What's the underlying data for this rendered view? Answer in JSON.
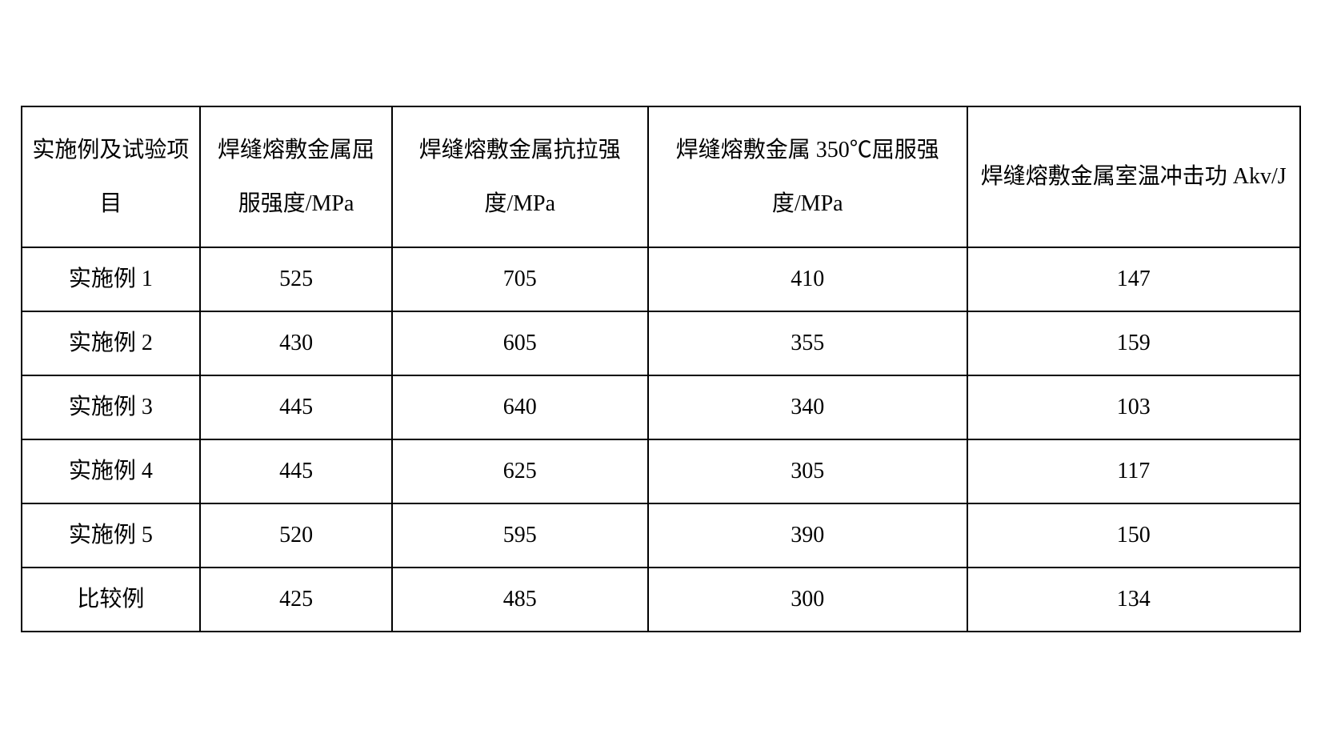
{
  "table": {
    "type": "table",
    "background_color": "#ffffff",
    "border_color": "#000000",
    "border_width": 2,
    "text_color": "#000000",
    "header_fontsize": 28,
    "cell_fontsize": 28,
    "font_family": "SimSun",
    "columns": [
      {
        "label": "实施例及试验项目",
        "width_pct": 14
      },
      {
        "label": "焊缝熔敷金属屈服强度/MPa",
        "width_pct": 15
      },
      {
        "label": "焊缝熔敷金属抗拉强度/MPa",
        "width_pct": 20
      },
      {
        "label": "焊缝熔敷金属 350℃屈服强度/MPa",
        "width_pct": 25
      },
      {
        "label": "焊缝熔敷金属室温冲击功 Akv/J",
        "width_pct": 26
      }
    ],
    "rows": [
      {
        "label": "实施例 1",
        "values": [
          "525",
          "705",
          "410",
          "147"
        ]
      },
      {
        "label": "实施例 2",
        "values": [
          "430",
          "605",
          "355",
          "159"
        ]
      },
      {
        "label": "实施例 3",
        "values": [
          "445",
          "640",
          "340",
          "103"
        ]
      },
      {
        "label": "实施例 4",
        "values": [
          "445",
          "625",
          "305",
          "117"
        ]
      },
      {
        "label": "实施例 5",
        "values": [
          "520",
          "595",
          "390",
          "150"
        ]
      },
      {
        "label": "比较例",
        "values": [
          "425",
          "485",
          "300",
          "134"
        ]
      }
    ]
  }
}
